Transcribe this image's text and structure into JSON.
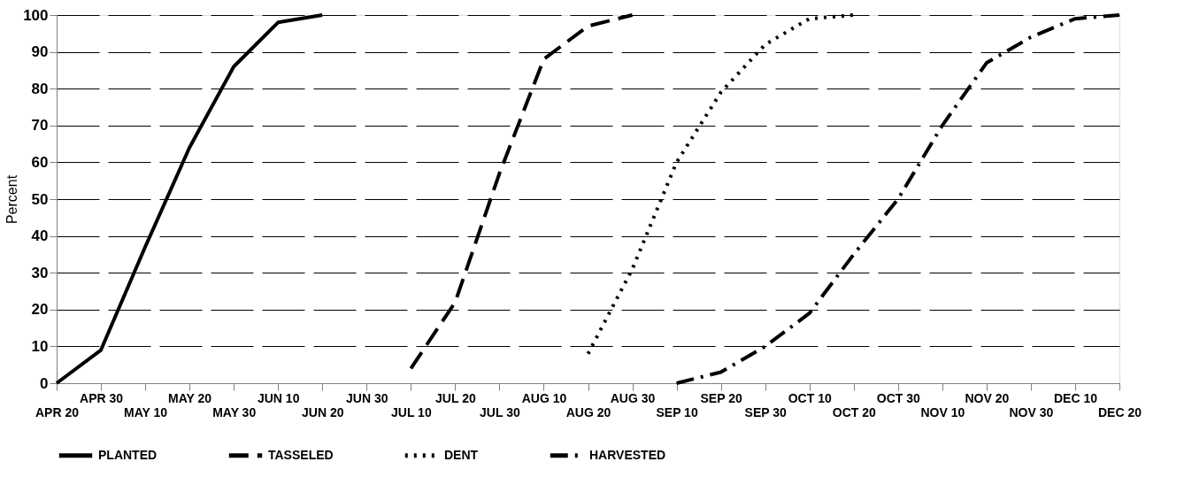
{
  "chart_data": {
    "type": "line",
    "ylabel": "Percent",
    "categories": [
      "APR 20",
      "APR 30",
      "MAY 10",
      "MAY 20",
      "MAY 30",
      "JUN 10",
      "JUN 20",
      "JUN 30",
      "JUL 10",
      "JUL 20",
      "JUL 30",
      "AUG 10",
      "AUG 20",
      "AUG 30",
      "SEP 10",
      "SEP 20",
      "SEP 30",
      "OCT 10",
      "OCT 20",
      "OCT 30",
      "NOV 10",
      "NOV 20",
      "NOV 30",
      "DEC 10",
      "DEC 20"
    ],
    "series": [
      {
        "name": "PLANTED",
        "color": "#000000",
        "line_style": "solid",
        "values": [
          0,
          9,
          37,
          64,
          86,
          98,
          100,
          null,
          null,
          null,
          null,
          null,
          null,
          null,
          null,
          null,
          null,
          null,
          null,
          null,
          null,
          null,
          null,
          null,
          null
        ]
      },
      {
        "name": "TASSELED",
        "color": "#000000",
        "line_style": "dashed",
        "values": [
          null,
          null,
          null,
          null,
          null,
          null,
          null,
          null,
          4,
          22,
          57,
          88,
          97,
          100,
          null,
          null,
          null,
          null,
          null,
          null,
          null,
          null,
          null,
          null,
          null
        ]
      },
      {
        "name": "DENT",
        "color": "#000000",
        "line_style": "dotted",
        "values": [
          null,
          null,
          null,
          null,
          null,
          null,
          null,
          null,
          null,
          null,
          null,
          null,
          8,
          31,
          60,
          79,
          92,
          99,
          100,
          null,
          null,
          null,
          null,
          null,
          null
        ]
      },
      {
        "name": "HARVESTED",
        "color": "#000000",
        "line_style": "dashdot",
        "values": [
          null,
          null,
          null,
          null,
          null,
          null,
          null,
          null,
          null,
          null,
          null,
          null,
          null,
          null,
          0,
          3,
          10,
          19,
          35,
          50,
          70,
          87,
          94,
          99,
          100
        ]
      }
    ],
    "ylim": [
      0,
      100
    ],
    "yticks": [
      0,
      10,
      20,
      30,
      40,
      50,
      60,
      70,
      80,
      90,
      100
    ],
    "grid": "y",
    "legend": "bottom",
    "marker": "none"
  }
}
